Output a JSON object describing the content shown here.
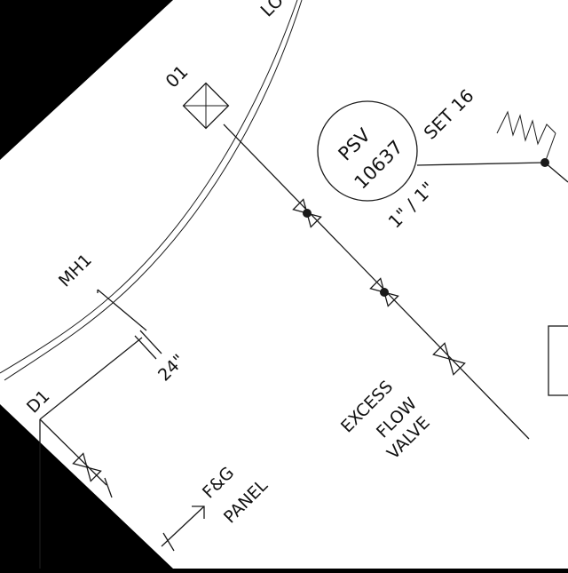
{
  "colors": {
    "background": "#000000",
    "sheet": "#ffffff",
    "ink": "#1a1a1a"
  },
  "labels": {
    "top_edge": "LO",
    "instrument_tag": "01",
    "psv_line1": "PSV",
    "psv_line2": "10637",
    "psv_set": "SET 16",
    "psv_size": "1\" / 1\"",
    "mh1": "MH1",
    "pipe_size": "24\"",
    "d1": "D1",
    "fg_line1": "F&G",
    "fg_line2": "PANEL",
    "efv_line1": "EXCESS",
    "efv_line2": "FLOW",
    "efv_line3": "VALVE"
  }
}
